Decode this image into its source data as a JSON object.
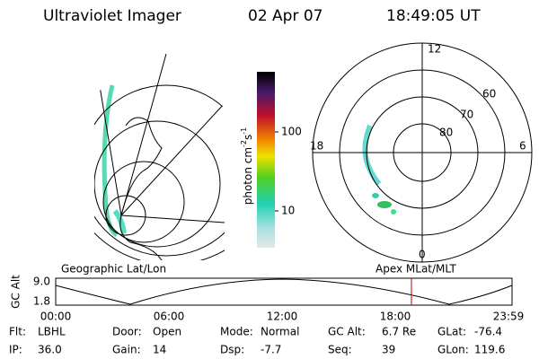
{
  "header": {
    "title": "Ultraviolet Imager",
    "date": "02 Apr 07",
    "time": "18:49:05 UT"
  },
  "colorbar": {
    "label": "photon cm",
    "exp1": "-2",
    "unit2": "s",
    "exp2": "-1",
    "ticks": [
      "100",
      "10"
    ]
  },
  "left_panel": {
    "label": "Geographic Lat/Lon"
  },
  "right_panel": {
    "label": "Apex MLat/MLT",
    "mlt_labels": [
      "12",
      "18",
      "6",
      "0"
    ],
    "lat_labels": [
      "60",
      "70",
      "80"
    ]
  },
  "timeline": {
    "ylabel": "GC Alt",
    "yticks": [
      "9.0",
      "1.8"
    ],
    "xticks": [
      "00:00",
      "06:00",
      "12:00",
      "18:00",
      "23:59"
    ]
  },
  "info": [
    [
      {
        "label": "Flt:",
        "value": "LBHL"
      },
      {
        "label": "Door:",
        "value": "Open"
      },
      {
        "label": "Mode:",
        "value": "Normal"
      },
      {
        "label": "GC Alt:",
        "value": "6.7 Re"
      },
      {
        "label": "GLat:",
        "value": "-76.4"
      }
    ],
    [
      {
        "label": "IP:",
        "value": "36.0"
      },
      {
        "label": "Gain:",
        "value": "14"
      },
      {
        "label": "Dsp:",
        "value": "-7.7"
      },
      {
        "label": "Seq:",
        "value": "39"
      },
      {
        "label": "GLon:",
        "value": "119.6"
      }
    ]
  ]
}
